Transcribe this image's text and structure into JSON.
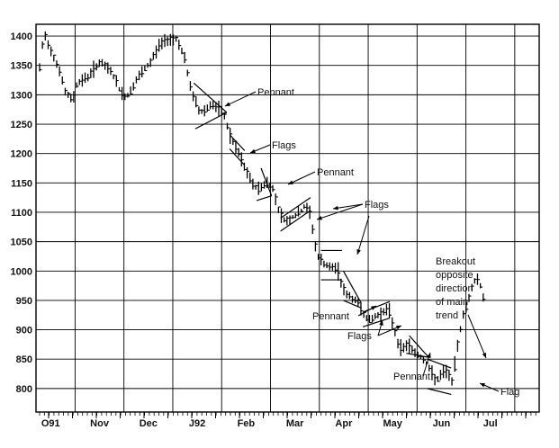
{
  "chart_data": {
    "type": "bar",
    "subtype": "ohlc",
    "title": "",
    "xlabel": "",
    "ylabel": "",
    "ylim": [
      760,
      1420
    ],
    "grid": true,
    "y_ticks": [
      800,
      850,
      900,
      950,
      1000,
      1050,
      1100,
      1150,
      1200,
      1250,
      1300,
      1350,
      1400
    ],
    "x_tick_labels": [
      "O91",
      "Nov",
      "Dec",
      "J92",
      "Feb",
      "Mar",
      "Apr",
      "May",
      "Jun",
      "Jul"
    ],
    "price_path": [
      [
        0.0,
        1345
      ],
      [
        1.5,
        1405
      ],
      [
        3.0,
        1385
      ],
      [
        6.0,
        1350
      ],
      [
        7.0,
        1335
      ],
      [
        8.5,
        1305
      ],
      [
        11.0,
        1290
      ],
      [
        12.5,
        1320
      ],
      [
        16.0,
        1330
      ],
      [
        20.0,
        1355
      ],
      [
        24.0,
        1340
      ],
      [
        27.0,
        1305
      ],
      [
        29.0,
        1295
      ],
      [
        33.0,
        1330
      ],
      [
        37.0,
        1355
      ],
      [
        40.0,
        1385
      ],
      [
        43.0,
        1395
      ],
      [
        46.0,
        1395
      ],
      [
        48.5,
        1360
      ],
      [
        50.0,
        1320
      ],
      [
        51.5,
        1295
      ],
      [
        53.5,
        1270
      ],
      [
        55.5,
        1275
      ],
      [
        57.5,
        1285
      ],
      [
        59.5,
        1275
      ],
      [
        61.5,
        1270
      ],
      [
        62.0,
        1258
      ],
      [
        64.0,
        1225
      ],
      [
        65.5,
        1210
      ],
      [
        67.0,
        1195
      ],
      [
        68.5,
        1175
      ],
      [
        70.0,
        1160
      ],
      [
        71.5,
        1145
      ],
      [
        73.0,
        1140
      ],
      [
        74.5,
        1145
      ],
      [
        76.0,
        1150
      ],
      [
        78.0,
        1140
      ],
      [
        79.5,
        1110
      ],
      [
        81.0,
        1090
      ],
      [
        82.5,
        1085
      ],
      [
        84.0,
        1090
      ],
      [
        85.5,
        1095
      ],
      [
        87.0,
        1100
      ],
      [
        88.5,
        1110
      ],
      [
        90.0,
        1105
      ],
      [
        91.5,
        1065
      ],
      [
        92.5,
        1030
      ],
      [
        93.5,
        1020
      ],
      [
        95.5,
        1010
      ],
      [
        97.5,
        1005
      ],
      [
        99.5,
        1005
      ],
      [
        101.0,
        975
      ],
      [
        102.5,
        960
      ],
      [
        104.0,
        955
      ],
      [
        105.5,
        950
      ],
      [
        107.0,
        940
      ],
      [
        108.5,
        925
      ],
      [
        110.0,
        915
      ],
      [
        111.5,
        920
      ],
      [
        113.0,
        925
      ],
      [
        114.5,
        930
      ],
      [
        116.5,
        935
      ],
      [
        118.0,
        910
      ],
      [
        119.5,
        880
      ],
      [
        121.0,
        865
      ],
      [
        122.5,
        875
      ],
      [
        124.0,
        870
      ],
      [
        125.5,
        860
      ],
      [
        127.0,
        855
      ],
      [
        128.5,
        850
      ],
      [
        130.0,
        835
      ],
      [
        131.5,
        820
      ],
      [
        133.0,
        815
      ],
      [
        134.5,
        825
      ],
      [
        136.0,
        830
      ],
      [
        137.0,
        820
      ],
      [
        138.0,
        810
      ],
      [
        139.5,
        870
      ],
      [
        140.5,
        900
      ],
      [
        141.5,
        925
      ],
      [
        143.0,
        945
      ],
      [
        144.5,
        975
      ],
      [
        146.0,
        990
      ],
      [
        147.0,
        980
      ],
      [
        148.5,
        950
      ]
    ],
    "annotations": [
      "Pennant",
      "Flags",
      "Pennant",
      "Flags",
      "Breakout",
      "opposite",
      "direction",
      "of main",
      "trend",
      "Pennant",
      "Flags",
      "Pennant",
      "Flag"
    ]
  }
}
